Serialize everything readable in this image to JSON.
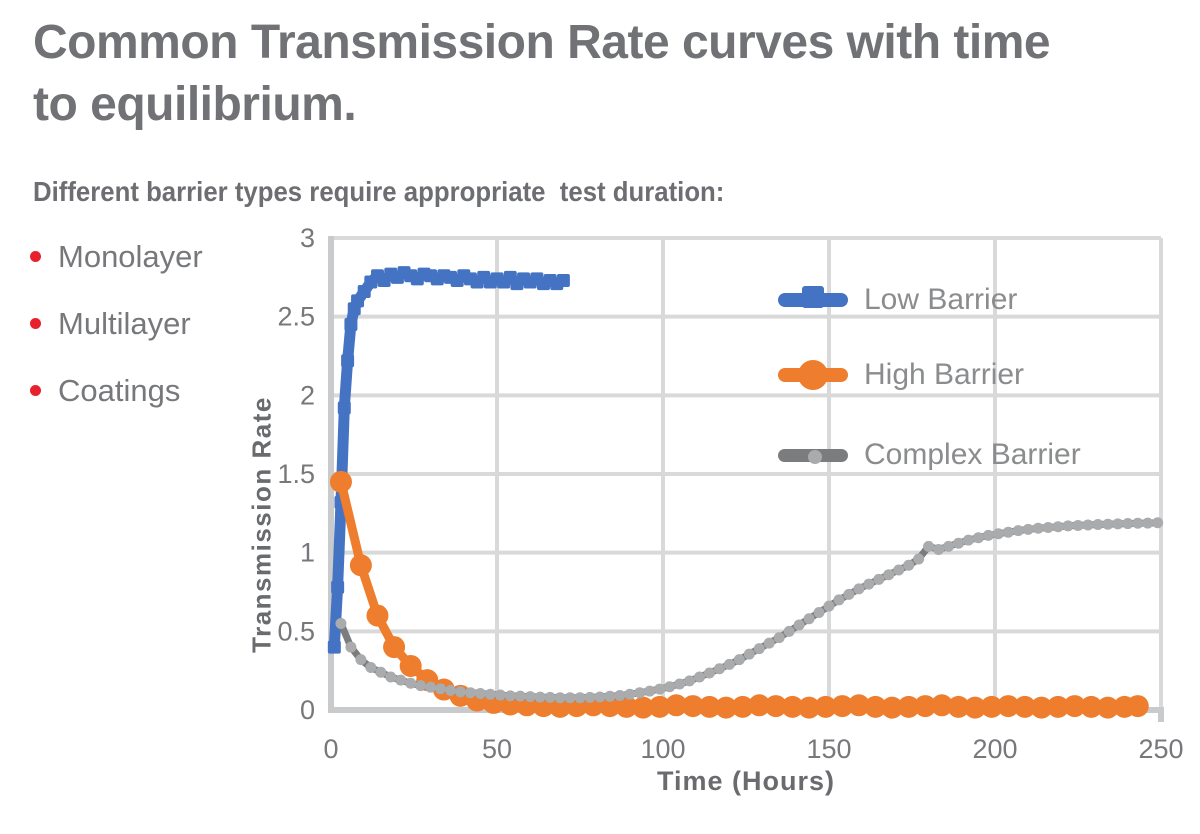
{
  "header": {
    "title_line1": "Common Transmission Rate curves with time",
    "title_line2": "to equilibrium.",
    "subtitle": "Different barrier types require appropriate  test duration:"
  },
  "bullets": [
    {
      "label": "Monolayer"
    },
    {
      "label": "Multilayer"
    },
    {
      "label": "Coatings"
    }
  ],
  "colors": {
    "title": "#717276",
    "subtitle": "#6D6E71",
    "bullet_text": "#77787B",
    "bullet_dot": "#E8212E",
    "legend_text": "#8B8C8E",
    "axis_title": "#6A6B6E",
    "tick_text": "#77787B",
    "grid": "#D9D9D9",
    "axis_line": "#C9CACB"
  },
  "chart_data": {
    "type": "line",
    "title": "",
    "xlabel": "Time (Hours)",
    "ylabel": "Transmission Rate",
    "xlim": [
      0,
      250
    ],
    "ylim": [
      0,
      3
    ],
    "x_ticks": [
      0,
      50,
      100,
      150,
      200,
      250
    ],
    "y_ticks": [
      0,
      0.5,
      1,
      1.5,
      2,
      2.5,
      3
    ],
    "grid": true,
    "legend_position": "inside-upper-right",
    "series": [
      {
        "name": "Low Barrier",
        "color": "#4573C4",
        "marker": "square",
        "marker_color": "#4573C4",
        "line_width": 11,
        "marker_size": 13,
        "points": [
          [
            1,
            0.4
          ],
          [
            2,
            0.78
          ],
          [
            3,
            1.32
          ],
          [
            4,
            1.92
          ],
          [
            5,
            2.22
          ],
          [
            6,
            2.45
          ],
          [
            7,
            2.55
          ],
          [
            8,
            2.6
          ],
          [
            10,
            2.66
          ],
          [
            12,
            2.72
          ],
          [
            14,
            2.76
          ],
          [
            16,
            2.73
          ],
          [
            18,
            2.77
          ],
          [
            20,
            2.75
          ],
          [
            22,
            2.78
          ],
          [
            24,
            2.76
          ],
          [
            26,
            2.74
          ],
          [
            28,
            2.77
          ],
          [
            30,
            2.76
          ],
          [
            32,
            2.74
          ],
          [
            34,
            2.76
          ],
          [
            36,
            2.75
          ],
          [
            38,
            2.73
          ],
          [
            40,
            2.76
          ],
          [
            42,
            2.74
          ],
          [
            44,
            2.72
          ],
          [
            46,
            2.75
          ],
          [
            48,
            2.72
          ],
          [
            50,
            2.74
          ],
          [
            52,
            2.72
          ],
          [
            54,
            2.75
          ],
          [
            56,
            2.71
          ],
          [
            58,
            2.74
          ],
          [
            60,
            2.72
          ],
          [
            62,
            2.74
          ],
          [
            64,
            2.71
          ],
          [
            66,
            2.73
          ],
          [
            68,
            2.71
          ],
          [
            70,
            2.73
          ]
        ]
      },
      {
        "name": "High Barrier",
        "color": "#EE7D2D",
        "marker": "circle",
        "marker_color": "#EE7D2D",
        "line_width": 9,
        "marker_size": 22,
        "points": [
          [
            3,
            1.45
          ],
          [
            9,
            0.92
          ],
          [
            14,
            0.6
          ],
          [
            19,
            0.4
          ],
          [
            24,
            0.28
          ],
          [
            29,
            0.19
          ],
          [
            34,
            0.13
          ],
          [
            39,
            0.09
          ],
          [
            44,
            0.06
          ],
          [
            49,
            0.045
          ],
          [
            54,
            0.035
          ],
          [
            59,
            0.03
          ],
          [
            64,
            0.025
          ],
          [
            69,
            0.02
          ],
          [
            74,
            0.025
          ],
          [
            79,
            0.03
          ],
          [
            84,
            0.025
          ],
          [
            89,
            0.02
          ],
          [
            94,
            0.015
          ],
          [
            99,
            0.02
          ],
          [
            104,
            0.03
          ],
          [
            109,
            0.025
          ],
          [
            114,
            0.02
          ],
          [
            119,
            0.015
          ],
          [
            124,
            0.02
          ],
          [
            129,
            0.03
          ],
          [
            134,
            0.025
          ],
          [
            139,
            0.02
          ],
          [
            144,
            0.015
          ],
          [
            149,
            0.02
          ],
          [
            154,
            0.025
          ],
          [
            159,
            0.03
          ],
          [
            164,
            0.02
          ],
          [
            169,
            0.015
          ],
          [
            174,
            0.02
          ],
          [
            179,
            0.025
          ],
          [
            184,
            0.03
          ],
          [
            189,
            0.02
          ],
          [
            194,
            0.015
          ],
          [
            199,
            0.02
          ],
          [
            204,
            0.025
          ],
          [
            209,
            0.02
          ],
          [
            214,
            0.015
          ],
          [
            219,
            0.02
          ],
          [
            224,
            0.025
          ],
          [
            229,
            0.02
          ],
          [
            234,
            0.015
          ],
          [
            239,
            0.02
          ],
          [
            243,
            0.025
          ]
        ]
      },
      {
        "name": "Complex Barrier",
        "color": "#7B7C7E",
        "marker": "circle",
        "marker_color": "#AAABAD",
        "line_width": 7,
        "marker_size": 11,
        "points": [
          [
            3,
            0.55
          ],
          [
            6,
            0.4
          ],
          [
            9,
            0.32
          ],
          [
            12,
            0.27
          ],
          [
            15,
            0.24
          ],
          [
            18,
            0.21
          ],
          [
            21,
            0.19
          ],
          [
            24,
            0.17
          ],
          [
            27,
            0.155
          ],
          [
            30,
            0.145
          ],
          [
            33,
            0.135
          ],
          [
            36,
            0.125
          ],
          [
            39,
            0.115
          ],
          [
            42,
            0.11
          ],
          [
            45,
            0.105
          ],
          [
            48,
            0.1
          ],
          [
            51,
            0.095
          ],
          [
            54,
            0.09
          ],
          [
            57,
            0.088
          ],
          [
            60,
            0.085
          ],
          [
            63,
            0.082
          ],
          [
            66,
            0.08
          ],
          [
            69,
            0.078
          ],
          [
            72,
            0.078
          ],
          [
            75,
            0.078
          ],
          [
            78,
            0.08
          ],
          [
            81,
            0.083
          ],
          [
            84,
            0.087
          ],
          [
            87,
            0.092
          ],
          [
            90,
            0.1
          ],
          [
            93,
            0.11
          ],
          [
            96,
            0.12
          ],
          [
            99,
            0.133
          ],
          [
            102,
            0.148
          ],
          [
            105,
            0.165
          ],
          [
            108,
            0.185
          ],
          [
            111,
            0.21
          ],
          [
            114,
            0.235
          ],
          [
            117,
            0.262
          ],
          [
            120,
            0.29
          ],
          [
            123,
            0.32
          ],
          [
            126,
            0.355
          ],
          [
            129,
            0.39
          ],
          [
            132,
            0.425
          ],
          [
            135,
            0.46
          ],
          [
            138,
            0.5
          ],
          [
            141,
            0.54
          ],
          [
            144,
            0.58
          ],
          [
            147,
            0.62
          ],
          [
            150,
            0.66
          ],
          [
            153,
            0.7
          ],
          [
            156,
            0.735
          ],
          [
            159,
            0.77
          ],
          [
            162,
            0.8
          ],
          [
            165,
            0.83
          ],
          [
            168,
            0.86
          ],
          [
            171,
            0.89
          ],
          [
            174,
            0.92
          ],
          [
            177,
            0.96
          ],
          [
            180,
            1.04
          ],
          [
            183,
            1.02
          ],
          [
            186,
            1.04
          ],
          [
            189,
            1.06
          ],
          [
            192,
            1.08
          ],
          [
            195,
            1.095
          ],
          [
            198,
            1.11
          ],
          [
            201,
            1.12
          ],
          [
            204,
            1.13
          ],
          [
            207,
            1.14
          ],
          [
            210,
            1.148
          ],
          [
            213,
            1.155
          ],
          [
            216,
            1.16
          ],
          [
            219,
            1.165
          ],
          [
            222,
            1.17
          ],
          [
            225,
            1.173
          ],
          [
            228,
            1.176
          ],
          [
            231,
            1.179
          ],
          [
            234,
            1.181
          ],
          [
            237,
            1.183
          ],
          [
            240,
            1.185
          ],
          [
            243,
            1.187
          ],
          [
            246,
            1.188
          ],
          [
            249,
            1.19
          ]
        ]
      }
    ]
  }
}
